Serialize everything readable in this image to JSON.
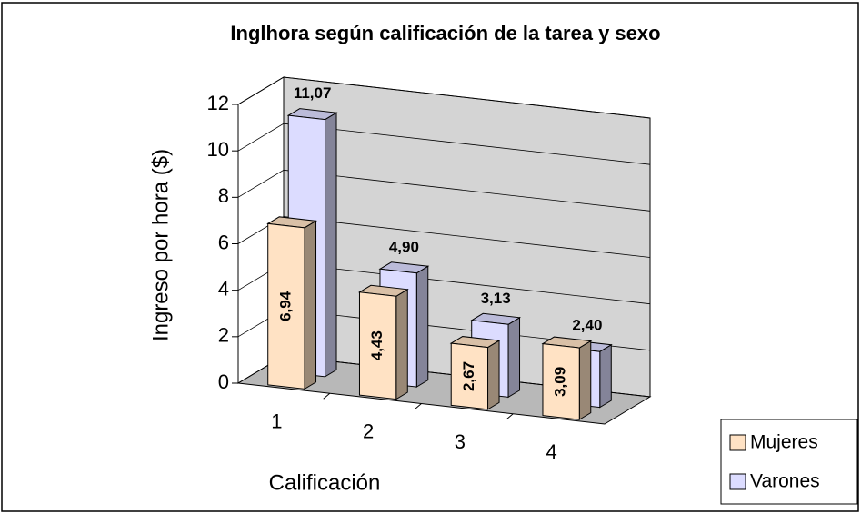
{
  "chart_data": {
    "type": "bar3d",
    "title": "Inglhora según calificación de la tarea y sexo",
    "xlabel": "Calificación",
    "ylabel": "Ingreso por hora ($)",
    "categories": [
      "1",
      "2",
      "3",
      "4"
    ],
    "series": [
      {
        "name": "Mujeres",
        "color": "#ffe2c4",
        "values": [
          6.94,
          4.43,
          2.67,
          3.09
        ],
        "value_labels": [
          "6,94",
          "4,43",
          "2,67",
          "3,09"
        ]
      },
      {
        "name": "Varones",
        "color": "#dcdcff",
        "values": [
          11.07,
          4.9,
          3.13,
          2.4
        ],
        "value_labels": [
          "11,07",
          "4,90",
          "3,13",
          "2,40"
        ]
      }
    ],
    "ylim": [
      0,
      12
    ],
    "yticks": [
      0,
      2,
      4,
      6,
      8,
      10,
      12
    ],
    "grid": true,
    "legend": "bottom right"
  }
}
